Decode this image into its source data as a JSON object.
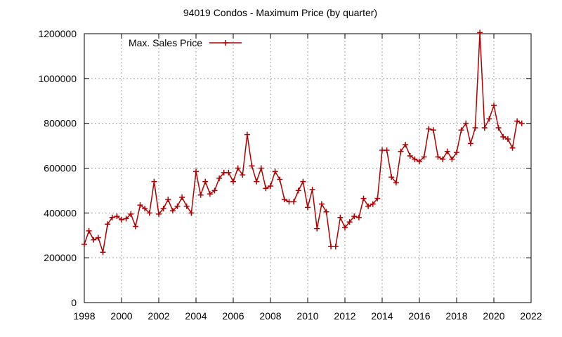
{
  "chart_data": {
    "type": "line",
    "title": "94019 Condos - Maximum Price (by quarter)",
    "xlabel": "",
    "ylabel": "",
    "xlim": [
      1998,
      2022
    ],
    "ylim": [
      0,
      1200000
    ],
    "x_ticks": [
      1998,
      2000,
      2002,
      2004,
      2006,
      2008,
      2010,
      2012,
      2014,
      2016,
      2018,
      2020,
      2022
    ],
    "y_ticks": [
      0,
      200000,
      400000,
      600000,
      800000,
      1000000,
      1200000
    ],
    "grid": true,
    "legend_position": "top-left",
    "series": [
      {
        "name": "Max. Sales Price",
        "color": "#b00000",
        "marker": "plus",
        "x": [
          1998.0,
          1998.25,
          1998.5,
          1998.75,
          1999.0,
          1999.25,
          1999.5,
          1999.75,
          2000.0,
          2000.25,
          2000.5,
          2000.75,
          2001.0,
          2001.25,
          2001.5,
          2001.75,
          2002.0,
          2002.25,
          2002.5,
          2002.75,
          2003.0,
          2003.25,
          2003.5,
          2003.75,
          2004.0,
          2004.25,
          2004.5,
          2004.75,
          2005.0,
          2005.25,
          2005.5,
          2005.75,
          2006.0,
          2006.25,
          2006.5,
          2006.75,
          2007.0,
          2007.25,
          2007.5,
          2007.75,
          2008.0,
          2008.25,
          2008.5,
          2008.75,
          2009.0,
          2009.25,
          2009.5,
          2009.75,
          2010.0,
          2010.25,
          2010.5,
          2010.75,
          2011.0,
          2011.25,
          2011.5,
          2011.75,
          2012.0,
          2012.25,
          2012.5,
          2012.75,
          2013.0,
          2013.25,
          2013.5,
          2013.75,
          2014.0,
          2014.25,
          2014.5,
          2014.75,
          2015.0,
          2015.25,
          2015.5,
          2015.75,
          2016.0,
          2016.25,
          2016.5,
          2016.75,
          2017.0,
          2017.25,
          2017.5,
          2017.75,
          2018.0,
          2018.25,
          2018.5,
          2018.75,
          2019.0,
          2019.25,
          2019.5,
          2019.75,
          2020.0,
          2020.25,
          2020.5,
          2020.75,
          2021.0,
          2021.25,
          2021.5
        ],
        "values": [
          260000,
          320000,
          280000,
          290000,
          225000,
          350000,
          380000,
          385000,
          370000,
          375000,
          395000,
          340000,
          435000,
          420000,
          400000,
          540000,
          395000,
          420000,
          460000,
          410000,
          430000,
          470000,
          430000,
          400000,
          585000,
          480000,
          540000,
          485000,
          500000,
          555000,
          580000,
          580000,
          540000,
          600000,
          570000,
          750000,
          610000,
          540000,
          600000,
          510000,
          520000,
          585000,
          550000,
          460000,
          450000,
          450000,
          500000,
          540000,
          425000,
          505000,
          330000,
          440000,
          405000,
          250000,
          250000,
          380000,
          335000,
          360000,
          385000,
          380000,
          465000,
          430000,
          440000,
          465000,
          680000,
          680000,
          560000,
          535000,
          675000,
          705000,
          655000,
          640000,
          630000,
          650000,
          775000,
          770000,
          650000,
          640000,
          675000,
          640000,
          670000,
          770000,
          800000,
          710000,
          780000,
          1205000,
          780000,
          820000,
          880000,
          780000,
          740000,
          730000,
          690000,
          810000,
          800000
        ]
      }
    ]
  }
}
